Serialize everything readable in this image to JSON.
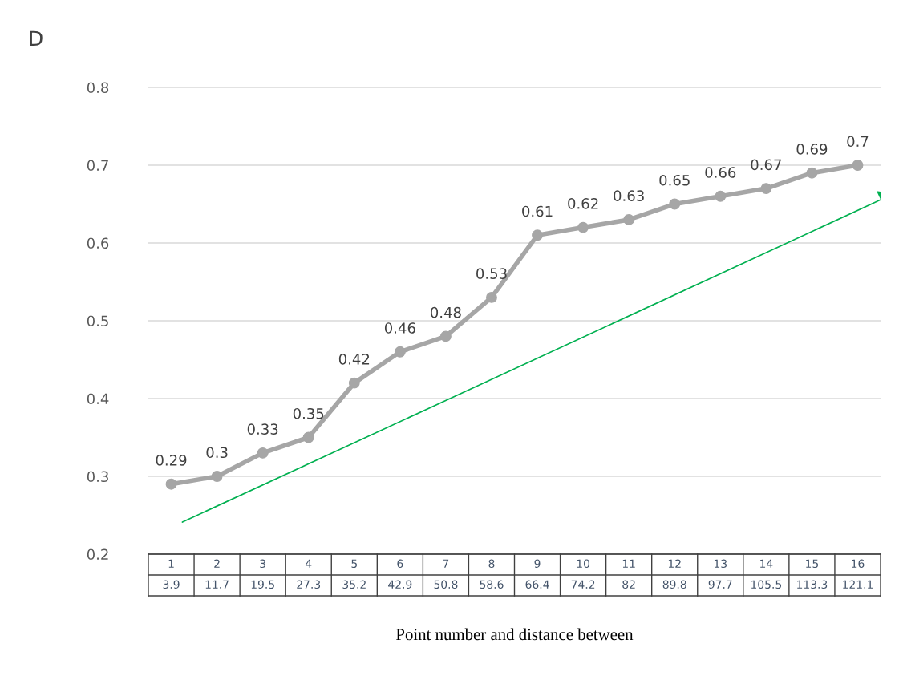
{
  "chart_data": {
    "type": "line",
    "title": "D",
    "xlabel": "Point number and distance between",
    "categories": [
      "1\n3.9",
      "2\n11.7",
      "3\n19.5",
      "4\n27.3",
      "5\n35.2",
      "6\n42.9",
      "7\n50.8",
      "8\n58.6",
      "9\n66.4",
      "10\n74.2",
      "11\n82",
      "12\n89.8",
      "13\n97.7",
      "14\n105.5",
      "15\n113.3",
      "16\n121.1"
    ],
    "series": [
      {
        "color": "#a6a6a6",
        "values": [
          0.29,
          0.3,
          0.33,
          0.35,
          0.42,
          0.46,
          0.48,
          0.53,
          0.61,
          0.62,
          0.63,
          0.65,
          0.66,
          0.67,
          0.69,
          0.7
        ]
      }
    ],
    "ylim": [
      0.2,
      0.8
    ],
    "yticks": [
      0.2,
      0.3,
      0.4,
      0.5,
      0.6,
      0.7,
      0.8
    ],
    "grid": "y",
    "marker": "circle",
    "line_style": "solid",
    "data_labels": true,
    "legend": false
  }
}
